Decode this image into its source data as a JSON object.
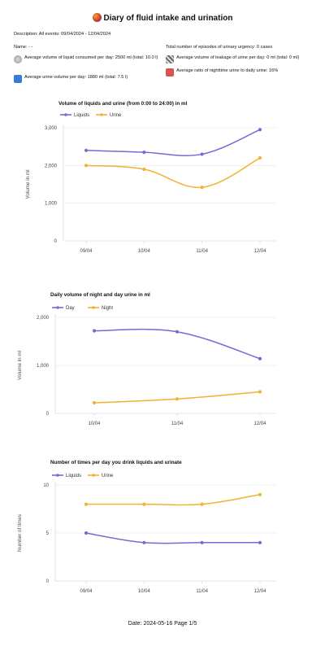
{
  "header": {
    "title": "Diary of fluid intake and urination",
    "description": "Description: All events: 09/04/2024 - 12/04/2024",
    "name": "Name: - -",
    "stats": {
      "avg_liquid": "Average volume of liquid consumed per day: 2500 ml (total: 10.0 l)",
      "avg_urine": "Average urine volume per day: 1880 ml (total: 7.5 l)",
      "urgency": "Total number of episodes of urinary urgency: 0 cases",
      "avg_leakage": "Average volume of leakage of urine per day: 0 ml (total: 0 ml)",
      "night_ratio": "Average ratio of nighttime urine to daily urine: 16%"
    },
    "icons": {
      "liquid": "liquid-glass-icon",
      "urine": "urine-bottle-icon",
      "leakage": "leakage-icon",
      "ratio": "night-ratio-icon"
    }
  },
  "colors": {
    "purple": "#7b68d8",
    "orange": "#f2b233",
    "grid": "#e6e6e6",
    "axis": "#555555"
  },
  "chart_data": [
    {
      "type": "line",
      "title": "Volume of liquids and urine (from 0:00 to 24:00) in ml",
      "ylabel": "Volume in ml",
      "xlabel": "",
      "categories": [
        "09/04",
        "10/04",
        "11/04",
        "12/04"
      ],
      "ylim": [
        0,
        3000
      ],
      "yticks": [
        "0",
        "1,000",
        "2,000",
        "3,000"
      ],
      "ytick_values": [
        0,
        1000,
        2000,
        3000
      ],
      "legend_position": "top-left",
      "series": [
        {
          "name": "Liquids",
          "color": "#7b68d8",
          "values": [
            2400,
            2350,
            2300,
            2950
          ]
        },
        {
          "name": "Urine",
          "color": "#f2b233",
          "values": [
            2000,
            1900,
            1420,
            2200
          ]
        }
      ]
    },
    {
      "type": "line",
      "title": "Daily volume of night and day urine in ml",
      "ylabel": "Volume in ml",
      "xlabel": "",
      "categories": [
        "10/04",
        "11/04",
        "12/04"
      ],
      "ylim": [
        0,
        2000
      ],
      "yticks": [
        "0",
        "1,000",
        "2,000"
      ],
      "ytick_values": [
        0,
        1000,
        2000
      ],
      "legend_position": "top-left",
      "series": [
        {
          "name": "Day",
          "color": "#7b68d8",
          "values": [
            1720,
            1700,
            1140
          ]
        },
        {
          "name": "Night",
          "color": "#f2b233",
          "values": [
            220,
            300,
            450
          ]
        }
      ]
    },
    {
      "type": "line",
      "title": "Number of times per day you drink liquids and urinate",
      "ylabel": "Number of times",
      "xlabel": "",
      "categories": [
        "09/04",
        "10/04",
        "11/04",
        "12/04"
      ],
      "ylim": [
        0,
        10
      ],
      "yticks": [
        "0",
        "5",
        "10"
      ],
      "ytick_values": [
        0,
        5,
        10
      ],
      "legend_position": "top-left",
      "series": [
        {
          "name": "Liquids",
          "color": "#7b68d8",
          "values": [
            5,
            4,
            4,
            4
          ]
        },
        {
          "name": "Urine",
          "color": "#f2b233",
          "values": [
            8,
            8,
            8,
            9
          ]
        }
      ]
    }
  ],
  "footer": {
    "text": "Date: 2024-05-16   Page 1/5"
  }
}
